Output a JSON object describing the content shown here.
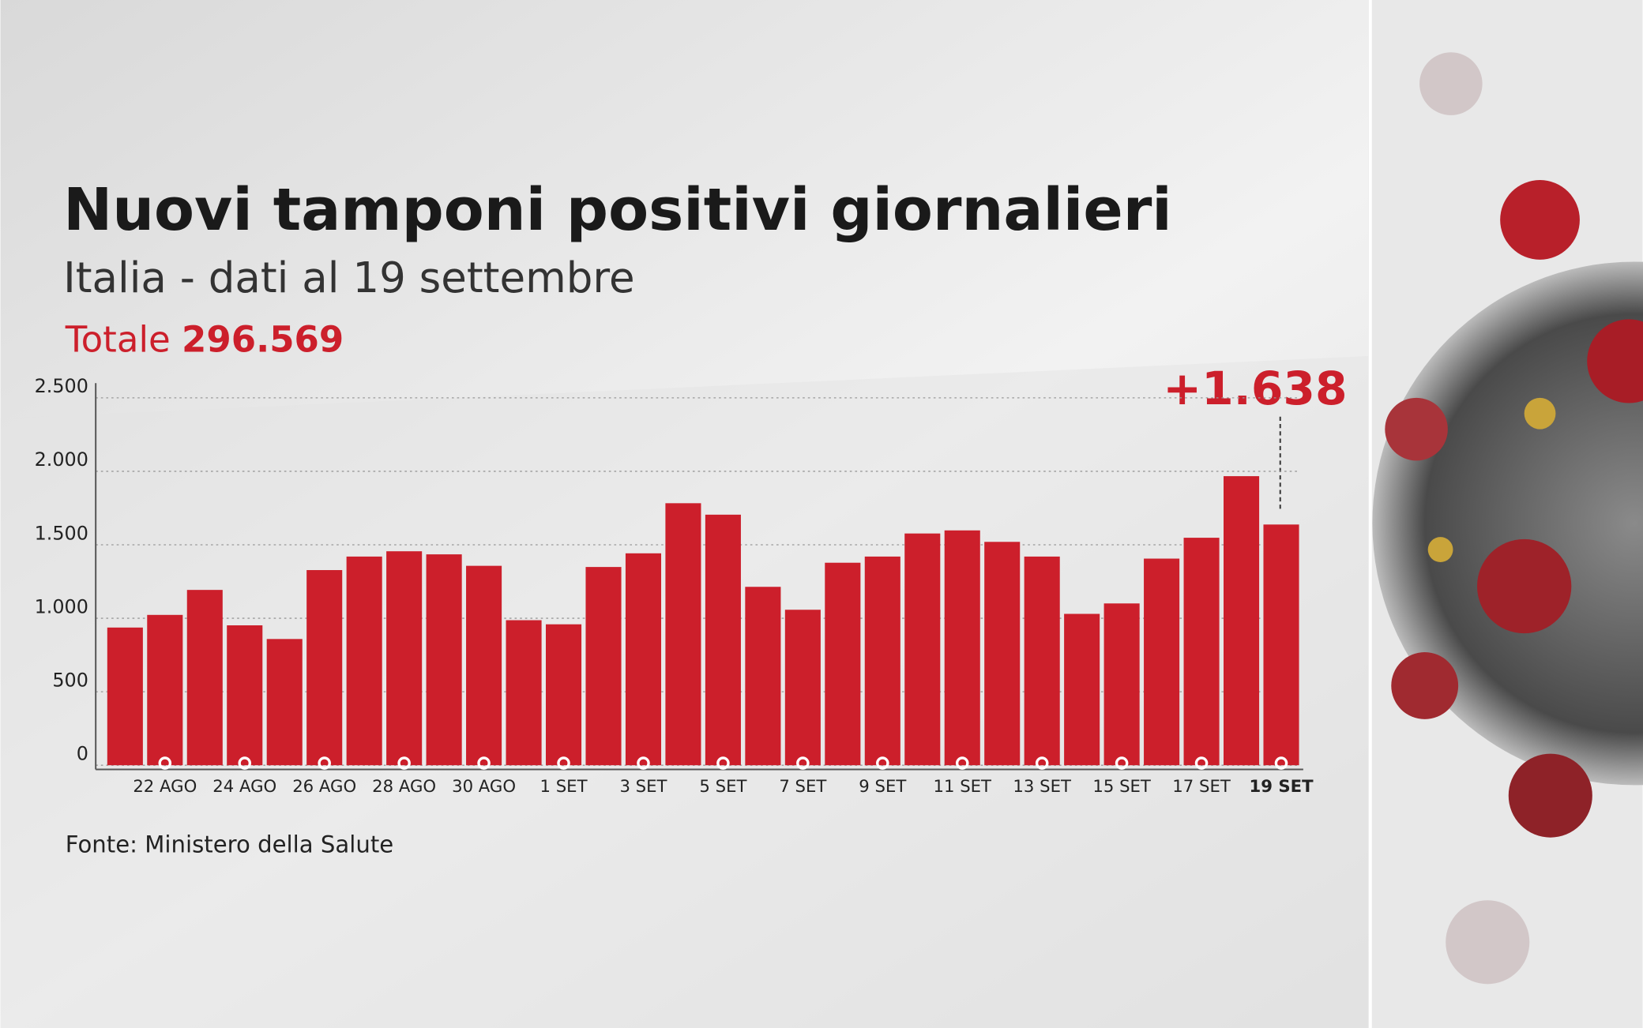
{
  "chart_data": {
    "type": "bar",
    "title": "Nuovi tamponi positivi giornalieri",
    "subtitle": "Italia - dati al 19 settembre",
    "total_label": "Totale",
    "total": "296.569",
    "annotation": "+1.638",
    "source": "Fonte: Ministero della Salute",
    "categories": [
      null,
      "22 AGO",
      null,
      "24 AGO",
      null,
      "26 AGO",
      null,
      "28 AGO",
      null,
      "30 AGO",
      null,
      "1 SET",
      null,
      "3 SET",
      null,
      "5 SET",
      null,
      "7 SET",
      null,
      "9 SET",
      null,
      "11 SET",
      null,
      "13 SET",
      null,
      "15 SET",
      null,
      "17 SET",
      null,
      "19 SET"
    ],
    "values": [
      937,
      1023,
      1193,
      952,
      859,
      1328,
      1420,
      1456,
      1435,
      1357,
      987,
      959,
      1349,
      1442,
      1783,
      1705,
      1214,
      1058,
      1378,
      1420,
      1577,
      1598,
      1520,
      1420,
      1030,
      1101,
      1406,
      1548,
      1967,
      1638
    ],
    "color": "#cc1f2b",
    "ylim": [
      0,
      2600
    ],
    "yticks": [
      0,
      500,
      {
        "value": 1000,
        "label": "1.000"
      },
      {
        "value": 1500,
        "label": "1.500"
      },
      {
        "value": 2000,
        "label": "2.000"
      },
      {
        "value": 2500,
        "label": "2.500"
      }
    ],
    "grid": true
  }
}
